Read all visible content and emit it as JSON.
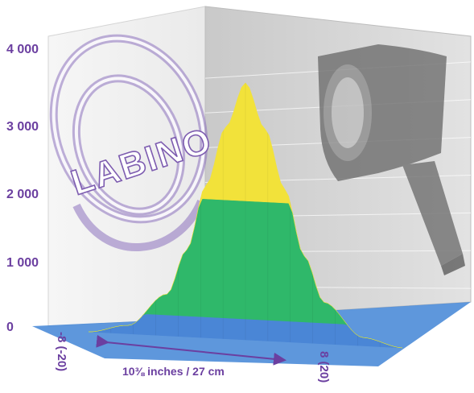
{
  "chart_data": {
    "type": "area",
    "render": "3d-surface",
    "logo_text": "LABINO",
    "y_ticks": [
      "0",
      "1 000",
      "2 000",
      "3 000",
      "4 000"
    ],
    "ylim": [
      0,
      4000
    ],
    "x_ticks": [
      "-8 (-20)",
      "8 (20)"
    ],
    "xlim": [
      -8,
      8
    ],
    "span_label": "10⅜ inches / 27 cm",
    "x": [
      -8,
      -6,
      -4,
      -3,
      -2,
      -1,
      0,
      1,
      2,
      3,
      4,
      6,
      8
    ],
    "values": [
      0,
      120,
      600,
      1250,
      2200,
      3050,
      3700,
      3050,
      2200,
      1250,
      600,
      120,
      0
    ],
    "color_bands": [
      {
        "from": 0,
        "to": 300,
        "color": "#4a86d6"
      },
      {
        "from": 300,
        "to": 2000,
        "color": "#2fb86a"
      },
      {
        "from": 2000,
        "to": 4000,
        "color": "#f2e23a"
      }
    ],
    "grid": true
  }
}
